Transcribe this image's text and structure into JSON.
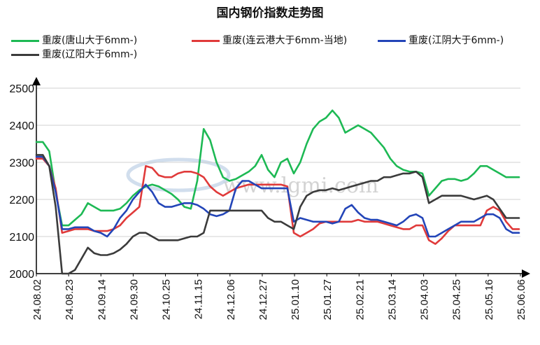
{
  "chart_data": {
    "type": "line",
    "title": "国内钢价指数走势图",
    "xlabel": "",
    "ylabel": "",
    "ylim": [
      2000,
      2500
    ],
    "yticks": [
      2000,
      2100,
      2200,
      2300,
      2400,
      2500
    ],
    "xticks": [
      "24.08.02",
      "24.08.23",
      "24.09.14",
      "24.09.30",
      "24.10.25",
      "24.11.15",
      "24.12.06",
      "24.12.27",
      "25.01.10",
      "25.01.27",
      "25.02.21",
      "25.03.14",
      "25.04.03",
      "25.04.25",
      "25.05.16",
      "25.06.06"
    ],
    "grid": true,
    "legend_position": "top",
    "watermark": "www.lgmi.com",
    "series": [
      {
        "name": "重废(唐山大于6mm-)",
        "color": "#1db954",
        "values": [
          2355,
          2355,
          2330,
          2220,
          2130,
          2130,
          2145,
          2160,
          2190,
          2180,
          2170,
          2170,
          2170,
          2175,
          2190,
          2210,
          2225,
          2235,
          2240,
          2235,
          2225,
          2215,
          2200,
          2180,
          2175,
          2250,
          2390,
          2360,
          2300,
          2260,
          2250,
          2255,
          2265,
          2275,
          2290,
          2320,
          2280,
          2260,
          2300,
          2310,
          2270,
          2300,
          2350,
          2390,
          2410,
          2420,
          2440,
          2420,
          2380,
          2390,
          2400,
          2390,
          2380,
          2360,
          2340,
          2310,
          2290,
          2280,
          2275,
          2275,
          2270,
          2210,
          2230,
          2250,
          2255,
          2255,
          2250,
          2255,
          2270,
          2290,
          2290,
          2280,
          2270,
          2260,
          2260,
          2260
        ]
      },
      {
        "name": "重废(连云港大于6mm-当地)",
        "color": "#e03a3a",
        "values": [
          2310,
          2310,
          2290,
          2230,
          2110,
          2115,
          2120,
          2120,
          2120,
          2115,
          2115,
          2115,
          2120,
          2130,
          2150,
          2165,
          2180,
          2290,
          2285,
          2265,
          2260,
          2260,
          2270,
          2275,
          2275,
          2270,
          2260,
          2235,
          2220,
          2210,
          2220,
          2230,
          2235,
          2240,
          2240,
          2240,
          2240,
          2240,
          2240,
          2235,
          2110,
          2100,
          2110,
          2120,
          2135,
          2140,
          2140,
          2140,
          2140,
          2140,
          2145,
          2140,
          2140,
          2140,
          2135,
          2130,
          2125,
          2120,
          2120,
          2130,
          2130,
          2090,
          2080,
          2095,
          2115,
          2130,
          2130,
          2130,
          2130,
          2130,
          2170,
          2180,
          2170,
          2140,
          2120,
          2120
        ]
      },
      {
        "name": "重废(江阴大于6mm-)",
        "color": "#2345b8",
        "values": [
          2315,
          2315,
          2290,
          2220,
          2120,
          2120,
          2125,
          2125,
          2125,
          2115,
          2110,
          2100,
          2120,
          2150,
          2170,
          2200,
          2220,
          2240,
          2220,
          2190,
          2180,
          2180,
          2185,
          2190,
          2190,
          2185,
          2175,
          2160,
          2155,
          2160,
          2170,
          2230,
          2250,
          2250,
          2240,
          2230,
          2230,
          2230,
          2230,
          2230,
          2140,
          2150,
          2145,
          2140,
          2140,
          2140,
          2135,
          2140,
          2175,
          2185,
          2165,
          2150,
          2145,
          2145,
          2140,
          2135,
          2130,
          2140,
          2155,
          2160,
          2150,
          2100,
          2100,
          2110,
          2120,
          2130,
          2140,
          2140,
          2140,
          2150,
          2160,
          2160,
          2150,
          2120,
          2110,
          2110
        ]
      },
      {
        "name": "重废(辽阳大于6mm-)",
        "color": "#3b3b3b",
        "values": [
          2320,
          2320,
          2290,
          2180,
          2000,
          2000,
          2010,
          2040,
          2070,
          2055,
          2050,
          2050,
          2055,
          2065,
          2080,
          2100,
          2110,
          2110,
          2100,
          2090,
          2090,
          2090,
          2090,
          2095,
          2100,
          2100,
          2110,
          2170,
          2170,
          2170,
          2170,
          2170,
          2170,
          2170,
          2170,
          2170,
          2150,
          2140,
          2140,
          2130,
          2120,
          2180,
          2210,
          2220,
          2225,
          2225,
          2230,
          2225,
          2230,
          2235,
          2240,
          2245,
          2250,
          2250,
          2260,
          2260,
          2265,
          2270,
          2270,
          2275,
          2260,
          2190,
          2200,
          2210,
          2210,
          2210,
          2210,
          2205,
          2200,
          2205,
          2210,
          2200,
          2175,
          2150,
          2150,
          2150
        ]
      }
    ]
  }
}
